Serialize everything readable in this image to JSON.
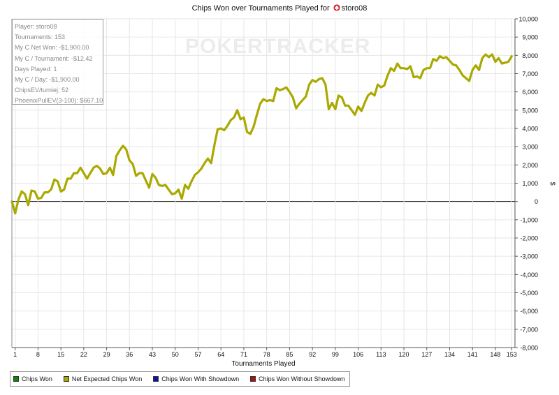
{
  "title": {
    "prefix": "Chips Won over Tournaments Played for",
    "player": "storo08"
  },
  "watermark": "POKERTRACKER",
  "info_box": [
    "Player: storo08",
    "Tournaments: 153",
    "My C Net Won: -$1,900.00",
    "My C / Tournament: -$12.42",
    "Days Played: 1",
    "My C / Day: -$1,900.00",
    "ChipsEV/turniej: 52",
    "PhoenixPullEV(3-100): $667.10"
  ],
  "legend": [
    {
      "label": "Chips Won",
      "color": "#0a8a0a"
    },
    {
      "label": "Net Expected Chips Won",
      "color": "#a9a900"
    },
    {
      "label": "Chips Won With Showdown",
      "color": "#1010b0"
    },
    {
      "label": "Chips Won Without Showdown",
      "color": "#b01010"
    }
  ],
  "colors": {
    "line": "#a9a900",
    "grid": "#e6e6e6",
    "zero_line": "#000000",
    "title_suit": "#d62020"
  },
  "chart_data": {
    "type": "line",
    "title": "Chips Won over Tournaments Played for storo08",
    "xlabel": "Tournaments Played",
    "ylabel": "$",
    "xlim": [
      0,
      154
    ],
    "ylim": [
      -8000,
      10000
    ],
    "x_ticks": [
      1,
      8,
      15,
      22,
      29,
      36,
      43,
      50,
      57,
      64,
      71,
      78,
      85,
      92,
      99,
      106,
      113,
      120,
      127,
      134,
      141,
      148,
      153
    ],
    "y_ticks": [
      10000,
      9000,
      8000,
      7000,
      6000,
      5000,
      4000,
      3000,
      2000,
      1000,
      0,
      -1000,
      -2000,
      -3000,
      -4000,
      -5000,
      -6000,
      -7000,
      -8000
    ],
    "y_tick_labels": [
      "10,000",
      "9,000",
      "8,000",
      "7,000",
      "6,000",
      "5,000",
      "4,000",
      "3,000",
      "2,000",
      "1,000",
      "0",
      "-1,000",
      "-2,000",
      "-3,000",
      "-4,000",
      "-5,000",
      "-6,000",
      "-7,000",
      "-8,000"
    ],
    "grid": true,
    "legend_position": "bottom-left",
    "series": [
      {
        "name": "Net Expected Chips Won",
        "x": [
          0,
          1,
          2,
          3,
          4,
          5,
          6,
          7,
          8,
          9,
          10,
          11,
          12,
          13,
          14,
          15,
          16,
          17,
          18,
          19,
          20,
          21,
          22,
          23,
          24,
          25,
          26,
          27,
          28,
          29,
          30,
          31,
          32,
          33,
          34,
          35,
          36,
          37,
          38,
          39,
          40,
          41,
          42,
          43,
          44,
          45,
          46,
          47,
          48,
          49,
          50,
          51,
          52,
          53,
          54,
          55,
          56,
          57,
          58,
          59,
          60,
          61,
          62,
          63,
          64,
          65,
          66,
          67,
          68,
          69,
          70,
          71,
          72,
          73,
          74,
          75,
          76,
          77,
          78,
          79,
          80,
          81,
          82,
          83,
          84,
          85,
          86,
          87,
          88,
          89,
          90,
          91,
          92,
          93,
          94,
          95,
          96,
          97,
          98,
          99,
          100,
          101,
          102,
          103,
          104,
          105,
          106,
          107,
          108,
          109,
          110,
          111,
          112,
          113,
          114,
          115,
          116,
          117,
          118,
          119,
          120,
          121,
          122,
          123,
          124,
          125,
          126,
          127,
          128,
          129,
          130,
          131,
          132,
          133,
          134,
          135,
          136,
          137,
          138,
          139,
          140,
          141,
          142,
          143,
          144,
          145,
          146,
          147,
          148,
          149,
          150,
          151,
          152,
          153
        ],
        "values": [
          0,
          -650,
          100,
          550,
          400,
          -200,
          600,
          550,
          150,
          200,
          500,
          500,
          650,
          1200,
          1100,
          550,
          650,
          1250,
          1250,
          1550,
          1550,
          1850,
          1550,
          1250,
          1550,
          1850,
          1950,
          1800,
          1500,
          1550,
          1850,
          1450,
          2500,
          2800,
          3050,
          2850,
          2250,
          2050,
          1400,
          1550,
          1550,
          1150,
          750,
          1500,
          1300,
          900,
          850,
          900,
          650,
          400,
          450,
          650,
          150,
          900,
          700,
          1100,
          1450,
          1600,
          1800,
          2100,
          2350,
          2100,
          3100,
          3950,
          4000,
          3900,
          4150,
          4450,
          4600,
          5000,
          4500,
          4600,
          3800,
          3700,
          4100,
          4750,
          5350,
          5600,
          5500,
          5550,
          5500,
          6200,
          6100,
          6150,
          6250,
          6000,
          5700,
          5100,
          5350,
          5550,
          5750,
          6400,
          6650,
          6550,
          6700,
          6750,
          6400,
          5050,
          5400,
          5050,
          5800,
          5700,
          5250,
          5250,
          5000,
          4750,
          5200,
          4950,
          5400,
          5800,
          5950,
          5800,
          6400,
          6250,
          6350,
          6900,
          7300,
          7150,
          7550,
          7300,
          7300,
          7250,
          7400,
          6800,
          6850,
          6750,
          7200,
          7300,
          7300,
          7800,
          7700,
          7950,
          7850,
          7900,
          7700,
          7500,
          7450,
          7200,
          6900,
          6750,
          6600,
          7200,
          7450,
          7200,
          7850,
          8050,
          7900,
          8050,
          7650,
          7850,
          7550,
          7600,
          7650,
          7950
        ]
      }
    ]
  }
}
